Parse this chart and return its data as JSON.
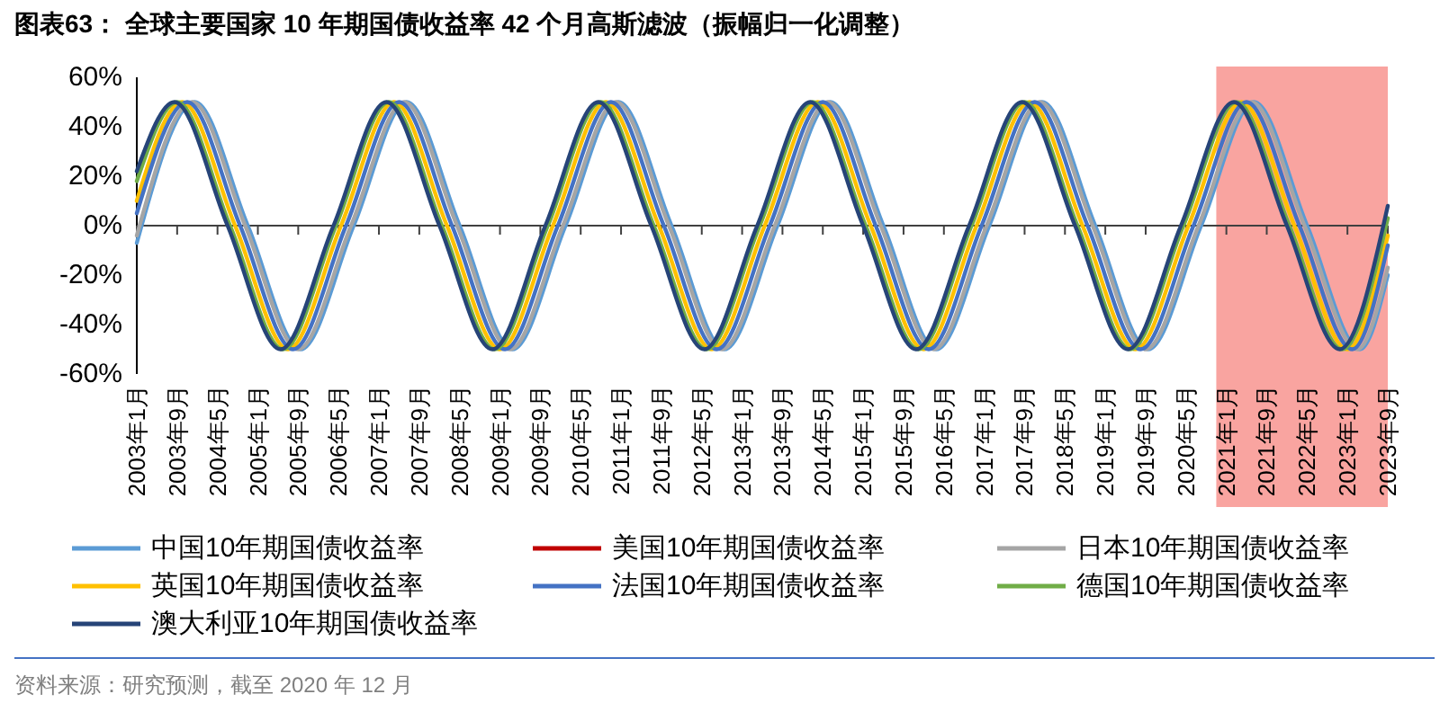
{
  "chart_data": {
    "type": "line",
    "title": "图表63：  全球主要国家 10 年期国债收益率 42 个月高斯滤波（振幅归一化调整）",
    "annotations": [
      "资料来源：研究预测，截至 2020 年 12 月"
    ],
    "legend": "bottom",
    "xlim": [
      "2003-01",
      "2023-09"
    ],
    "xticks": [
      {
        "value": "2003-01",
        "label": "2003年1月"
      },
      {
        "value": "2003-09",
        "label": "2003年9月"
      },
      {
        "value": "2004-05",
        "label": "2004年5月"
      },
      {
        "value": "2005-01",
        "label": "2005年1月"
      },
      {
        "value": "2005-09",
        "label": "2005年9月"
      },
      {
        "value": "2006-05",
        "label": "2006年5月"
      },
      {
        "value": "2007-01",
        "label": "2007年1月"
      },
      {
        "value": "2007-09",
        "label": "2007年9月"
      },
      {
        "value": "2008-05",
        "label": "2008年5月"
      },
      {
        "value": "2009-01",
        "label": "2009年1月"
      },
      {
        "value": "2009-09",
        "label": "2009年9月"
      },
      {
        "value": "2010-05",
        "label": "2010年5月"
      },
      {
        "value": "2011-01",
        "label": "2011年1月"
      },
      {
        "value": "2011-09",
        "label": "2011年9月"
      },
      {
        "value": "2012-05",
        "label": "2012年5月"
      },
      {
        "value": "2013-01",
        "label": "2013年1月"
      },
      {
        "value": "2013-09",
        "label": "2013年9月"
      },
      {
        "value": "2014-05",
        "label": "2014年5月"
      },
      {
        "value": "2015-01",
        "label": "2015年1月"
      },
      {
        "value": "2015-09",
        "label": "2015年9月"
      },
      {
        "value": "2016-05",
        "label": "2016年5月"
      },
      {
        "value": "2017-01",
        "label": "2017年1月"
      },
      {
        "value": "2017-09",
        "label": "2017年9月"
      },
      {
        "value": "2018-05",
        "label": "2018年5月"
      },
      {
        "value": "2019-01",
        "label": "2019年1月"
      },
      {
        "value": "2019-09",
        "label": "2019年9月"
      },
      {
        "value": "2020-05",
        "label": "2020年5月"
      },
      {
        "value": "2021-01",
        "label": "2021年1月"
      },
      {
        "value": "2021-09",
        "label": "2021年9月"
      },
      {
        "value": "2022-05",
        "label": "2022年5月"
      },
      {
        "value": "2023-01",
        "label": "2023年1月"
      },
      {
        "value": "2023-09",
        "label": "2023年9月"
      }
    ],
    "ylim": [
      -60,
      60
    ],
    "yticks": [
      {
        "value": -60,
        "label": "-60%"
      },
      {
        "value": -40,
        "label": "-40%"
      },
      {
        "value": -20,
        "label": "-20%"
      },
      {
        "value": 0,
        "label": "0%"
      },
      {
        "value": 20,
        "label": "20%"
      },
      {
        "value": 40,
        "label": "40%"
      },
      {
        "value": 60,
        "label": "60%"
      }
    ],
    "bands": [
      {
        "axis": "x",
        "from": "2020-11",
        "to": "2023-09",
        "color": "#f9a4a0"
      }
    ],
    "series": [
      {
        "name": "中国10年期国债收益率",
        "color": "#5b9bd5",
        "x": [
          "2003-01",
          "2003-12-16",
          "2004-11",
          "2005-09-16",
          "2006-08",
          "2007-06-16",
          "2008-05",
          "2009-03-16",
          "2010-02",
          "2010-12-16",
          "2011-11",
          "2012-09-16",
          "2013-08",
          "2014-06-16",
          "2015-05",
          "2016-03-16",
          "2017-02",
          "2017-12-16",
          "2018-11",
          "2019-09-16",
          "2020-08",
          "2021-06-16",
          "2022-05",
          "2023-03-16",
          "2023-09"
        ],
        "values": [
          -7,
          50,
          0,
          -50,
          0,
          50,
          0,
          -50,
          0,
          50,
          0,
          -50,
          0,
          50,
          0,
          -50,
          0,
          50,
          0,
          -50,
          0,
          50,
          0,
          -50,
          -20
        ]
      },
      {
        "name": "美国10年期国债收益率",
        "color": "#c00000",
        "values": [
          null
        ]
      },
      {
        "name": "日本10年期国债收益率",
        "color": "#a5a5a5",
        "x": [
          "2003-01",
          "2003-12",
          "2004-10-16",
          "2005-09",
          "2006-07-16",
          "2007-06",
          "2008-04-16",
          "2009-03",
          "2010-01-16",
          "2010-12",
          "2011-10-16",
          "2012-09",
          "2013-07-16",
          "2014-06",
          "2015-04-16",
          "2016-03",
          "2017-01-16",
          "2017-12",
          "2018-10-16",
          "2019-09",
          "2020-07-16",
          "2021-06",
          "2022-04-16",
          "2023-03",
          "2023-09"
        ],
        "values": [
          -4,
          50,
          0,
          -50,
          0,
          50,
          0,
          -50,
          0,
          50,
          0,
          -50,
          0,
          50,
          0,
          -50,
          0,
          50,
          0,
          -50,
          0,
          50,
          0,
          -50,
          -17
        ]
      },
      {
        "name": "英国10年期国债收益率",
        "color": "#ffc000",
        "x": [
          "2003-01",
          "2003-10",
          "2004-08-16",
          "2005-07",
          "2006-05-16",
          "2007-04",
          "2008-02-16",
          "2009-01",
          "2009-11-16",
          "2010-10",
          "2011-08-16",
          "2012-07",
          "2013-05-16",
          "2014-04",
          "2015-02-16",
          "2016-01",
          "2016-11-16",
          "2017-10",
          "2018-08-16",
          "2019-07",
          "2020-05-16",
          "2021-04",
          "2022-02-16",
          "2023-01",
          "2023-09"
        ],
        "values": [
          10,
          50,
          0,
          -50,
          0,
          50,
          0,
          -50,
          0,
          50,
          0,
          -50,
          0,
          50,
          0,
          -50,
          0,
          50,
          0,
          -50,
          0,
          50,
          0,
          -50,
          -4
        ]
      },
      {
        "name": "法国10年期国债收益率",
        "color": "#4472c4",
        "x": [
          "2003-01",
          "2003-11",
          "2004-09-16",
          "2005-08",
          "2006-06-16",
          "2007-05",
          "2008-03-16",
          "2009-02",
          "2009-12-16",
          "2010-11",
          "2011-09-16",
          "2012-08",
          "2013-06-16",
          "2014-05",
          "2015-03-16",
          "2016-02",
          "2016-12-16",
          "2017-11",
          "2018-09-16",
          "2019-08",
          "2020-06-16",
          "2021-05",
          "2022-03-16",
          "2023-02",
          "2023-09"
        ],
        "values": [
          5,
          50,
          0,
          -50,
          0,
          50,
          0,
          -50,
          0,
          50,
          0,
          -50,
          0,
          50,
          0,
          -50,
          0,
          50,
          0,
          -50,
          0,
          50,
          0,
          -50,
          -8
        ]
      },
      {
        "name": "德国10年期国债收益率",
        "color": "#70ad47",
        "x": [
          "2003-01",
          "2003-09",
          "2004-07-16",
          "2005-06",
          "2006-04-16",
          "2007-03",
          "2008-01-16",
          "2008-12",
          "2009-10-16",
          "2010-09",
          "2011-07-16",
          "2012-06",
          "2013-04-16",
          "2014-03",
          "2015-01-16",
          "2015-12",
          "2016-10-16",
          "2017-09",
          "2018-07-16",
          "2019-06",
          "2020-04-16",
          "2021-03",
          "2022-01-16",
          "2022-12",
          "2023-09"
        ],
        "values": [
          18,
          50,
          0,
          -50,
          0,
          50,
          0,
          -50,
          0,
          50,
          0,
          -50,
          0,
          50,
          0,
          -50,
          0,
          50,
          0,
          -50,
          0,
          50,
          0,
          -50,
          3
        ]
      },
      {
        "name": "澳大利亚10年期国债收益率",
        "color": "#264478",
        "x": [
          "2003-01",
          "2003-08-16",
          "2004-07",
          "2005-05-16",
          "2006-04",
          "2007-02-16",
          "2008-01",
          "2008-11-16",
          "2009-10",
          "2010-08-16",
          "2011-07",
          "2012-05-16",
          "2013-04",
          "2014-02-16",
          "2015-01",
          "2015-11-16",
          "2016-10",
          "2017-08-16",
          "2018-07",
          "2019-05-16",
          "2020-04",
          "2021-02-16",
          "2022-01",
          "2022-11-16",
          "2023-09"
        ],
        "values": [
          22,
          50,
          0,
          -50,
          0,
          50,
          0,
          -50,
          0,
          50,
          0,
          -50,
          0,
          50,
          0,
          -50,
          0,
          50,
          0,
          -50,
          0,
          50,
          0,
          -50,
          8
        ]
      }
    ]
  }
}
